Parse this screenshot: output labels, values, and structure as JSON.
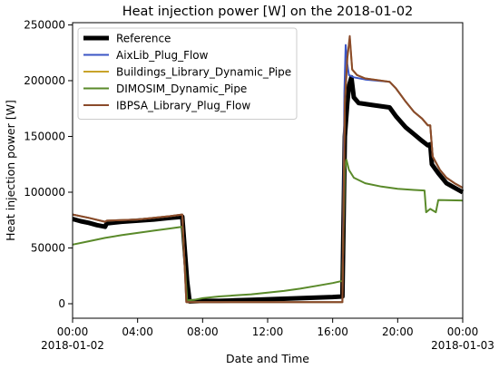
{
  "chart_data": {
    "type": "line",
    "title": "Heat injection power [W] on the 2018-01-02",
    "xlabel": "Date and Time",
    "ylabel": "Heat injection power [W]",
    "xlim": [
      0,
      24
    ],
    "ylim": [
      -13000,
      252000
    ],
    "x_ticks": [
      {
        "value": 0,
        "label": "00:00",
        "sublabel": "2018-01-02"
      },
      {
        "value": 4,
        "label": "04:00",
        "sublabel": ""
      },
      {
        "value": 8,
        "label": "08:00",
        "sublabel": ""
      },
      {
        "value": 12,
        "label": "12:00",
        "sublabel": ""
      },
      {
        "value": 16,
        "label": "16:00",
        "sublabel": ""
      },
      {
        "value": 20,
        "label": "20:00",
        "sublabel": ""
      },
      {
        "value": 24,
        "label": "00:00",
        "sublabel": "2018-01-03"
      }
    ],
    "y_ticks": [
      {
        "value": 0,
        "label": "0"
      },
      {
        "value": 50000,
        "label": "50000"
      },
      {
        "value": 100000,
        "label": "100000"
      },
      {
        "value": 150000,
        "label": "150000"
      },
      {
        "value": 200000,
        "label": "200000"
      },
      {
        "value": 250000,
        "label": "250000"
      }
    ],
    "grid": false,
    "legend_position": "top-left",
    "series": [
      {
        "name": "Reference",
        "color": "#000000",
        "width": 5,
        "points": [
          [
            0,
            76000
          ],
          [
            0.5,
            74000
          ],
          [
            1,
            72500
          ],
          [
            1.5,
            70500
          ],
          [
            2,
            69000
          ],
          [
            2.1,
            72000
          ],
          [
            3,
            73500
          ],
          [
            4,
            74500
          ],
          [
            5,
            75500
          ],
          [
            6,
            77000
          ],
          [
            6.75,
            78000
          ],
          [
            7.05,
            20000
          ],
          [
            7.2,
            2000
          ],
          [
            8,
            2500
          ],
          [
            9,
            2500
          ],
          [
            10,
            3000
          ],
          [
            11,
            3500
          ],
          [
            12,
            4000
          ],
          [
            13,
            4500
          ],
          [
            14,
            5000
          ],
          [
            15,
            5500
          ],
          [
            16,
            6000
          ],
          [
            16.6,
            6500
          ],
          [
            16.75,
            150000
          ],
          [
            16.9,
            180000
          ],
          [
            17.0,
            195000
          ],
          [
            17.15,
            203000
          ],
          [
            17.3,
            185000
          ],
          [
            17.6,
            180000
          ],
          [
            18.5,
            178000
          ],
          [
            19.5,
            176000
          ],
          [
            19.9,
            168000
          ],
          [
            20.5,
            158000
          ],
          [
            21,
            152000
          ],
          [
            21.5,
            146000
          ],
          [
            21.85,
            142000
          ],
          [
            22.0,
            143000
          ],
          [
            22.1,
            125000
          ],
          [
            22.5,
            117000
          ],
          [
            23,
            108000
          ],
          [
            23.5,
            104000
          ],
          [
            24,
            100000
          ]
        ]
      },
      {
        "name": "AixLib_Plug_Flow",
        "color": "#3b55c4",
        "width": 2,
        "points": [
          [
            0,
            80000
          ],
          [
            1,
            77000
          ],
          [
            2,
            73500
          ],
          [
            2.1,
            74500
          ],
          [
            4,
            75500
          ],
          [
            6,
            78500
          ],
          [
            6.75,
            80000
          ],
          [
            7.0,
            1500
          ],
          [
            8,
            1500
          ],
          [
            12,
            1500
          ],
          [
            16,
            1500
          ],
          [
            16.6,
            1500
          ],
          [
            16.72,
            190000
          ],
          [
            16.8,
            232000
          ],
          [
            16.9,
            215000
          ],
          [
            17.0,
            205000
          ],
          [
            17.3,
            203000
          ],
          [
            18,
            201000
          ],
          [
            19.5,
            199000
          ],
          [
            19.9,
            193000
          ],
          [
            20.5,
            181000
          ],
          [
            21,
            172000
          ],
          [
            21.5,
            166000
          ],
          [
            21.85,
            160000
          ],
          [
            22.0,
            160000
          ],
          [
            22.15,
            132000
          ],
          [
            22.6,
            120000
          ],
          [
            23,
            113000
          ],
          [
            23.5,
            108000
          ],
          [
            24,
            104000
          ]
        ]
      },
      {
        "name": "Buildings_Library_Dynamic_Pipe",
        "color": "#c9a32a",
        "width": 2,
        "points": [
          [
            0,
            80000
          ],
          [
            1,
            77000
          ],
          [
            2,
            73500
          ],
          [
            2.1,
            74500
          ],
          [
            4,
            75500
          ],
          [
            6,
            78500
          ],
          [
            6.75,
            80000
          ],
          [
            7.0,
            1500
          ],
          [
            8,
            1500
          ],
          [
            12,
            1500
          ],
          [
            16,
            1500
          ],
          [
            16.6,
            1500
          ],
          [
            16.75,
            180000
          ],
          [
            16.9,
            220000
          ],
          [
            17.05,
            238000
          ],
          [
            17.2,
            210000
          ],
          [
            17.5,
            205000
          ],
          [
            18,
            202000
          ],
          [
            19.5,
            199000
          ],
          [
            19.9,
            193000
          ],
          [
            20.5,
            181000
          ],
          [
            21,
            172000
          ],
          [
            21.5,
            166000
          ],
          [
            21.85,
            160000
          ],
          [
            22.0,
            160000
          ],
          [
            22.15,
            132000
          ],
          [
            22.6,
            120000
          ],
          [
            23,
            113000
          ],
          [
            23.5,
            108000
          ],
          [
            24,
            104000
          ]
        ]
      },
      {
        "name": "DIMOSIM_Dynamic_Pipe",
        "color": "#5a8a2a",
        "width": 2,
        "points": [
          [
            0,
            53000
          ],
          [
            1,
            56000
          ],
          [
            2,
            59000
          ],
          [
            3,
            61500
          ],
          [
            4,
            63500
          ],
          [
            5,
            65500
          ],
          [
            6,
            67500
          ],
          [
            6.75,
            69000
          ],
          [
            7.05,
            3000
          ],
          [
            7.5,
            3500
          ],
          [
            8,
            5000
          ],
          [
            9,
            6500
          ],
          [
            10,
            7500
          ],
          [
            11,
            8500
          ],
          [
            12,
            10000
          ],
          [
            13,
            11500
          ],
          [
            14,
            13500
          ],
          [
            15,
            16000
          ],
          [
            16,
            18500
          ],
          [
            16.6,
            20500
          ],
          [
            16.75,
            120000
          ],
          [
            16.85,
            129000
          ],
          [
            17.0,
            120000
          ],
          [
            17.3,
            113000
          ],
          [
            18,
            108000
          ],
          [
            19,
            105000
          ],
          [
            20,
            103000
          ],
          [
            21,
            102000
          ],
          [
            21.65,
            101500
          ],
          [
            21.75,
            82000
          ],
          [
            22.0,
            85000
          ],
          [
            22.35,
            82000
          ],
          [
            22.5,
            93000
          ],
          [
            24,
            92500
          ]
        ]
      },
      {
        "name": "IBPSA_Library_Plug_Flow",
        "color": "#8a4a2a",
        "width": 2,
        "points": [
          [
            0,
            80000
          ],
          [
            1,
            77000
          ],
          [
            2,
            73500
          ],
          [
            2.1,
            74500
          ],
          [
            4,
            75500
          ],
          [
            6,
            78500
          ],
          [
            6.75,
            80000
          ],
          [
            7.0,
            1500
          ],
          [
            8,
            1500
          ],
          [
            12,
            1500
          ],
          [
            16,
            1500
          ],
          [
            16.6,
            1500
          ],
          [
            16.75,
            180000
          ],
          [
            16.9,
            220000
          ],
          [
            17.05,
            240000
          ],
          [
            17.2,
            210000
          ],
          [
            17.5,
            205000
          ],
          [
            18,
            202000
          ],
          [
            19.5,
            199000
          ],
          [
            19.9,
            193000
          ],
          [
            20.5,
            181000
          ],
          [
            21,
            172000
          ],
          [
            21.5,
            166000
          ],
          [
            21.85,
            160000
          ],
          [
            22.0,
            160000
          ],
          [
            22.15,
            132000
          ],
          [
            22.6,
            120000
          ],
          [
            23,
            113000
          ],
          [
            23.5,
            108000
          ],
          [
            24,
            104000
          ]
        ]
      }
    ]
  }
}
